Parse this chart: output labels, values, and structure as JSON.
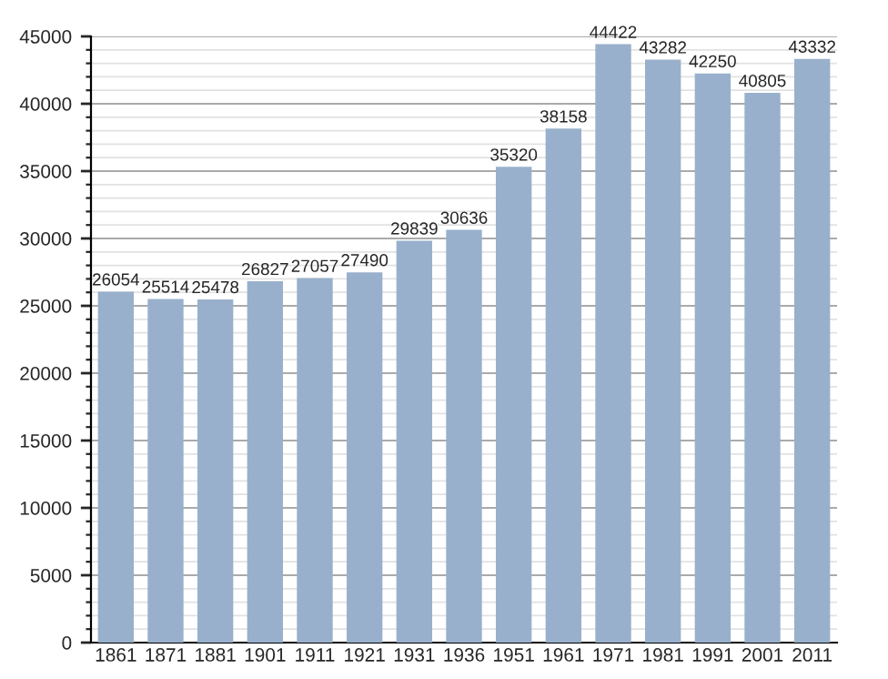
{
  "chart_data": {
    "type": "bar",
    "categories": [
      "1861",
      "1871",
      "1881",
      "1901",
      "1911",
      "1921",
      "1931",
      "1936",
      "1951",
      "1961",
      "1971",
      "1981",
      "1991",
      "2001",
      "2011"
    ],
    "values": [
      26054,
      25514,
      25478,
      26827,
      27057,
      27490,
      29839,
      30636,
      35320,
      38158,
      44422,
      43282,
      42250,
      40805,
      43332
    ],
    "color": "#98b0cb",
    "ylim": [
      0,
      45000
    ],
    "yticks": [
      0,
      5000,
      10000,
      15000,
      20000,
      25000,
      30000,
      35000,
      40000,
      45000
    ],
    "grid": "y",
    "data_labels": true
  }
}
